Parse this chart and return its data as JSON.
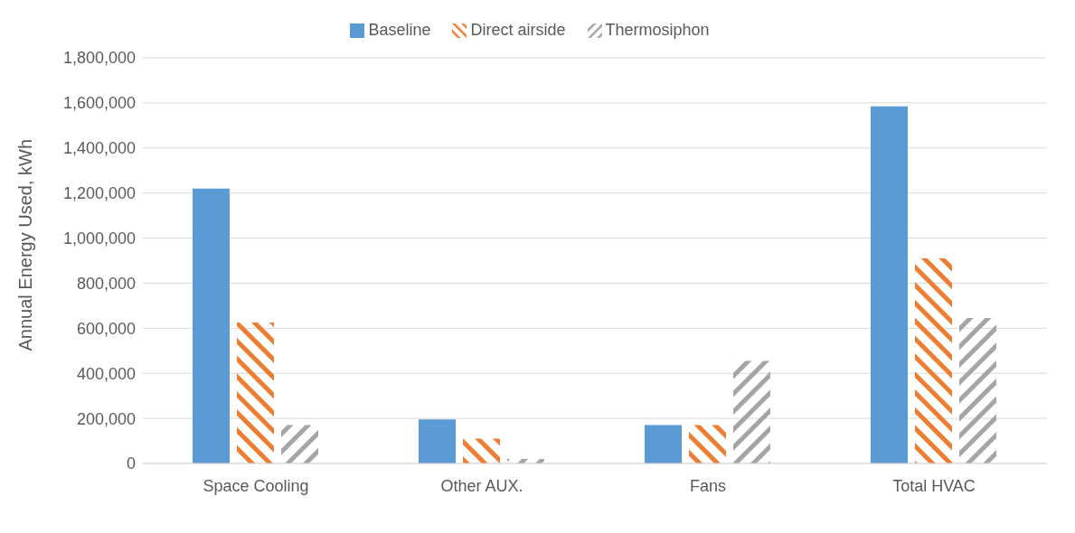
{
  "chart_data": {
    "type": "bar",
    "ylabel": "Annual Energy Used, kWh",
    "categories": [
      "Space Cooling",
      "Other AUX.",
      "Fans",
      "Total HVAC"
    ],
    "series": [
      {
        "name": "Baseline",
        "color": "#5b9bd5",
        "values": [
          1220000,
          195000,
          170000,
          1585000
        ]
      },
      {
        "name": "Direct airside",
        "color": "#ed7d31",
        "values": [
          625000,
          110000,
          170000,
          910000
        ]
      },
      {
        "name": "Thermosiphon",
        "color": "#a5a5a5",
        "values": [
          170000,
          20000,
          455000,
          645000
        ]
      }
    ],
    "ylim": [
      0,
      1800000
    ],
    "yticks": [
      0,
      {
        "value": 200000,
        "label": "200,000"
      },
      {
        "value": 400000,
        "label": "400,000"
      },
      {
        "value": 600000,
        "label": "600,000"
      },
      {
        "value": 800000,
        "label": "800,000"
      },
      {
        "value": 1000000,
        "label": "1,000,000"
      },
      {
        "value": 1200000,
        "label": "1,200,000"
      },
      {
        "value": 1400000,
        "label": "1,400,000"
      },
      {
        "value": 1600000,
        "label": "1,600,000"
      },
      {
        "value": 1800000,
        "label": "1,800,000"
      }
    ],
    "grid": "y",
    "legend": "top"
  }
}
